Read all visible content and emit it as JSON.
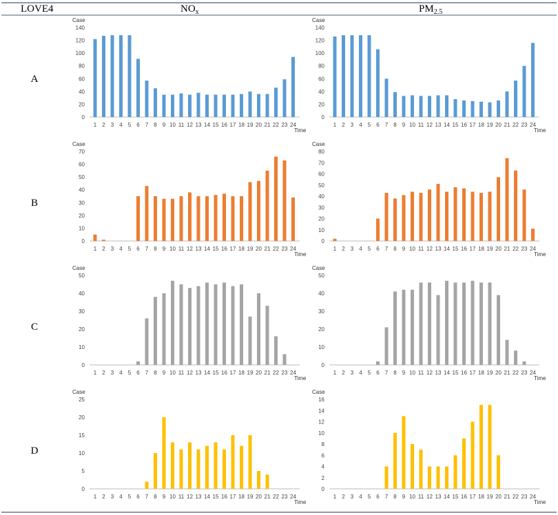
{
  "table": {
    "header": [
      "LOVE4",
      {
        "text": "NO",
        "sub": "x"
      },
      {
        "text": "PM",
        "sub": "2.5"
      }
    ],
    "rows": [
      {
        "label": "A"
      },
      {
        "label": "B"
      },
      {
        "label": "C"
      },
      {
        "label": "D"
      }
    ]
  },
  "chart_data": [
    {
      "type": "bar",
      "y_label": "Case",
      "x_label": "Time",
      "color": "#5b9bd5",
      "grid": false,
      "categories": [
        1,
        2,
        3,
        4,
        5,
        6,
        7,
        8,
        9,
        10,
        11,
        12,
        13,
        14,
        15,
        16,
        17,
        18,
        19,
        20,
        21,
        22,
        23,
        24
      ],
      "values": [
        122,
        127,
        128,
        128,
        128,
        91,
        57,
        45,
        35,
        35,
        37,
        35,
        38,
        35,
        35,
        35,
        35,
        36,
        40,
        36,
        36,
        46,
        59,
        94
      ],
      "ylim": [
        0,
        140
      ],
      "yticks": [
        0,
        20,
        40,
        60,
        80,
        100,
        120,
        140
      ]
    },
    {
      "type": "bar",
      "y_label": "Case",
      "x_label": "Time",
      "color": "#5b9bd5",
      "grid": false,
      "categories": [
        1,
        2,
        3,
        4,
        5,
        6,
        7,
        8,
        9,
        10,
        11,
        12,
        13,
        14,
        15,
        16,
        17,
        18,
        19,
        20,
        21,
        22,
        23,
        24
      ],
      "values": [
        126,
        128,
        128,
        128,
        128,
        106,
        60,
        39,
        33,
        34,
        33,
        33,
        34,
        34,
        28,
        26,
        25,
        24,
        23,
        26,
        40,
        57,
        80,
        116
      ],
      "ylim": [
        0,
        140
      ],
      "yticks": [
        0,
        20,
        40,
        60,
        80,
        100,
        120,
        140
      ]
    },
    {
      "type": "bar",
      "y_label": "Case",
      "x_label": "Time",
      "color": "#ed7d31",
      "grid": false,
      "categories": [
        1,
        2,
        3,
        4,
        5,
        6,
        7,
        8,
        9,
        10,
        11,
        12,
        13,
        14,
        15,
        16,
        17,
        18,
        19,
        20,
        21,
        22,
        23,
        24
      ],
      "values": [
        5,
        1,
        0,
        0,
        0,
        35,
        43,
        35,
        33,
        33,
        35,
        38,
        35,
        35,
        36,
        37,
        35,
        35,
        46,
        47,
        55,
        66,
        63,
        34
      ],
      "ylim": [
        0,
        70
      ],
      "yticks": [
        0,
        10,
        20,
        30,
        40,
        50,
        60,
        70
      ]
    },
    {
      "type": "bar",
      "y_label": "Case",
      "x_label": "Time",
      "color": "#ed7d31",
      "grid": false,
      "categories": [
        1,
        2,
        3,
        4,
        5,
        6,
        7,
        8,
        9,
        10,
        11,
        12,
        13,
        14,
        15,
        16,
        17,
        18,
        19,
        20,
        21,
        22,
        23,
        24
      ],
      "values": [
        2,
        0,
        0,
        0,
        0,
        20,
        43,
        38,
        41,
        44,
        43,
        46,
        51,
        44,
        48,
        47,
        44,
        43,
        44,
        57,
        74,
        63,
        46,
        11
      ],
      "ylim": [
        0,
        80
      ],
      "yticks": [
        0,
        10,
        20,
        30,
        40,
        50,
        60,
        70,
        80
      ]
    },
    {
      "type": "bar",
      "y_label": "Case",
      "x_label": "Time",
      "color": "#a5a5a5",
      "grid": false,
      "categories": [
        1,
        2,
        3,
        4,
        5,
        6,
        7,
        8,
        9,
        10,
        11,
        12,
        13,
        14,
        15,
        16,
        17,
        18,
        19,
        20,
        21,
        22,
        23,
        24
      ],
      "values": [
        0,
        0,
        0,
        0,
        0,
        2,
        26,
        38,
        40,
        47,
        45,
        43,
        44,
        46,
        45,
        46,
        44,
        45,
        27,
        40,
        33,
        16,
        6,
        0
      ],
      "ylim": [
        0,
        50
      ],
      "yticks": [
        0,
        10,
        20,
        30,
        40,
        50
      ]
    },
    {
      "type": "bar",
      "y_label": "Case",
      "x_label": "Time",
      "color": "#a5a5a5",
      "grid": false,
      "categories": [
        1,
        2,
        3,
        4,
        5,
        6,
        7,
        8,
        9,
        10,
        11,
        12,
        13,
        14,
        15,
        16,
        17,
        18,
        19,
        20,
        21,
        22,
        23,
        24
      ],
      "values": [
        0,
        0,
        0,
        0,
        0,
        2,
        21,
        41,
        42,
        42,
        46,
        46,
        39,
        47,
        46,
        46,
        47,
        46,
        46,
        39,
        14,
        8,
        2,
        0
      ],
      "ylim": [
        0,
        50
      ],
      "yticks": [
        0,
        10,
        20,
        30,
        40,
        50
      ]
    },
    {
      "type": "bar",
      "y_label": "Case",
      "x_label": "Time",
      "color": "#ffc000",
      "grid": false,
      "categories": [
        1,
        2,
        3,
        4,
        5,
        6,
        7,
        8,
        9,
        10,
        11,
        12,
        13,
        14,
        15,
        16,
        17,
        18,
        19,
        20,
        21,
        22,
        23,
        24
      ],
      "values": [
        0,
        0,
        0,
        0,
        0,
        0,
        2,
        10,
        20,
        13,
        11,
        13,
        11,
        12,
        13,
        11,
        15,
        12,
        15,
        5,
        4,
        0,
        0,
        0
      ],
      "ylim": [
        0,
        25
      ],
      "yticks": [
        0,
        5,
        10,
        15,
        20,
        25
      ]
    },
    {
      "type": "bar",
      "y_label": "Case",
      "x_label": "Time",
      "color": "#ffc000",
      "grid": false,
      "categories": [
        1,
        2,
        3,
        4,
        5,
        6,
        7,
        8,
        9,
        10,
        11,
        12,
        13,
        14,
        15,
        16,
        17,
        18,
        19,
        20,
        21,
        22,
        23,
        24
      ],
      "values": [
        0,
        0,
        0,
        0,
        0,
        0,
        4,
        10,
        13,
        8,
        7,
        4,
        4,
        4,
        6,
        9,
        12,
        15,
        15,
        6,
        0,
        0,
        0,
        0
      ],
      "ylim": [
        0,
        16
      ],
      "yticks": [
        0,
        2,
        4,
        6,
        8,
        10,
        12,
        14,
        16
      ]
    }
  ]
}
